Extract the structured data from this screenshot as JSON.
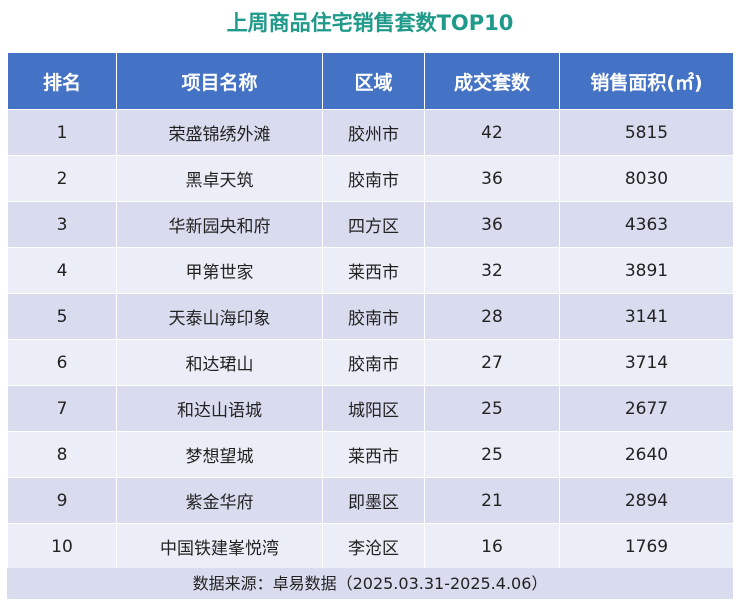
{
  "title": "上周商品住宅销售套数TOP10",
  "headers": {
    "rank": "排名",
    "project": "项目名称",
    "district": "区域",
    "units": "成交套数",
    "area": "销售面积(㎡)"
  },
  "rows": [
    {
      "rank": "1",
      "project": "荣盛锦绣外滩",
      "district": "胶州市",
      "units": "42",
      "area": "5815"
    },
    {
      "rank": "2",
      "project": "黑卓天筑",
      "district": "胶南市",
      "units": "36",
      "area": "8030"
    },
    {
      "rank": "3",
      "project": "华新园央和府",
      "district": "四方区",
      "units": "36",
      "area": "4363"
    },
    {
      "rank": "4",
      "project": "甲第世家",
      "district": "莱西市",
      "units": "32",
      "area": "3891"
    },
    {
      "rank": "5",
      "project": "天泰山海印象",
      "district": "胶南市",
      "units": "28",
      "area": "3141"
    },
    {
      "rank": "6",
      "project": "和达珺山",
      "district": "胶南市",
      "units": "27",
      "area": "3714"
    },
    {
      "rank": "7",
      "project": "和达山语城",
      "district": "城阳区",
      "units": "25",
      "area": "2677"
    },
    {
      "rank": "8",
      "project": "梦想望城",
      "district": "莱西市",
      "units": "25",
      "area": "2640"
    },
    {
      "rank": "9",
      "project": "紫金华府",
      "district": "即墨区",
      "units": "21",
      "area": "2894"
    },
    {
      "rank": "10",
      "project": "中国铁建峯悦湾",
      "district": "李沧区",
      "units": "16",
      "area": "1769"
    }
  ],
  "footer": "数据来源：卓易数据（2025.03.31-2025.4.06）",
  "colors": {
    "title": "#1f9a8a",
    "header_bg": "#4472c4",
    "row_bg": "#d9dcef",
    "row_alt_bg": "#eceef7"
  },
  "chart_data": {
    "type": "table",
    "title": "上周商品住宅销售套数TOP10",
    "columns": [
      "排名",
      "项目名称",
      "区域",
      "成交套数",
      "销售面积(㎡)"
    ],
    "rows": [
      [
        "1",
        "荣盛锦绣外滩",
        "胶州市",
        42,
        5815
      ],
      [
        "2",
        "黑卓天筑",
        "胶南市",
        36,
        8030
      ],
      [
        "3",
        "华新园央和府",
        "四方区",
        36,
        4363
      ],
      [
        "4",
        "甲第世家",
        "莱西市",
        32,
        3891
      ],
      [
        "5",
        "天泰山海印象",
        "胶南市",
        28,
        3141
      ],
      [
        "6",
        "和达珺山",
        "胶南市",
        27,
        3714
      ],
      [
        "7",
        "和达山语城",
        "城阳区",
        25,
        2677
      ],
      [
        "8",
        "梦想望城",
        "莱西市",
        25,
        2640
      ],
      [
        "9",
        "紫金华府",
        "即墨区",
        21,
        2894
      ],
      [
        "10",
        "中国铁建峯悦湾",
        "李沧区",
        16,
        1769
      ]
    ]
  }
}
